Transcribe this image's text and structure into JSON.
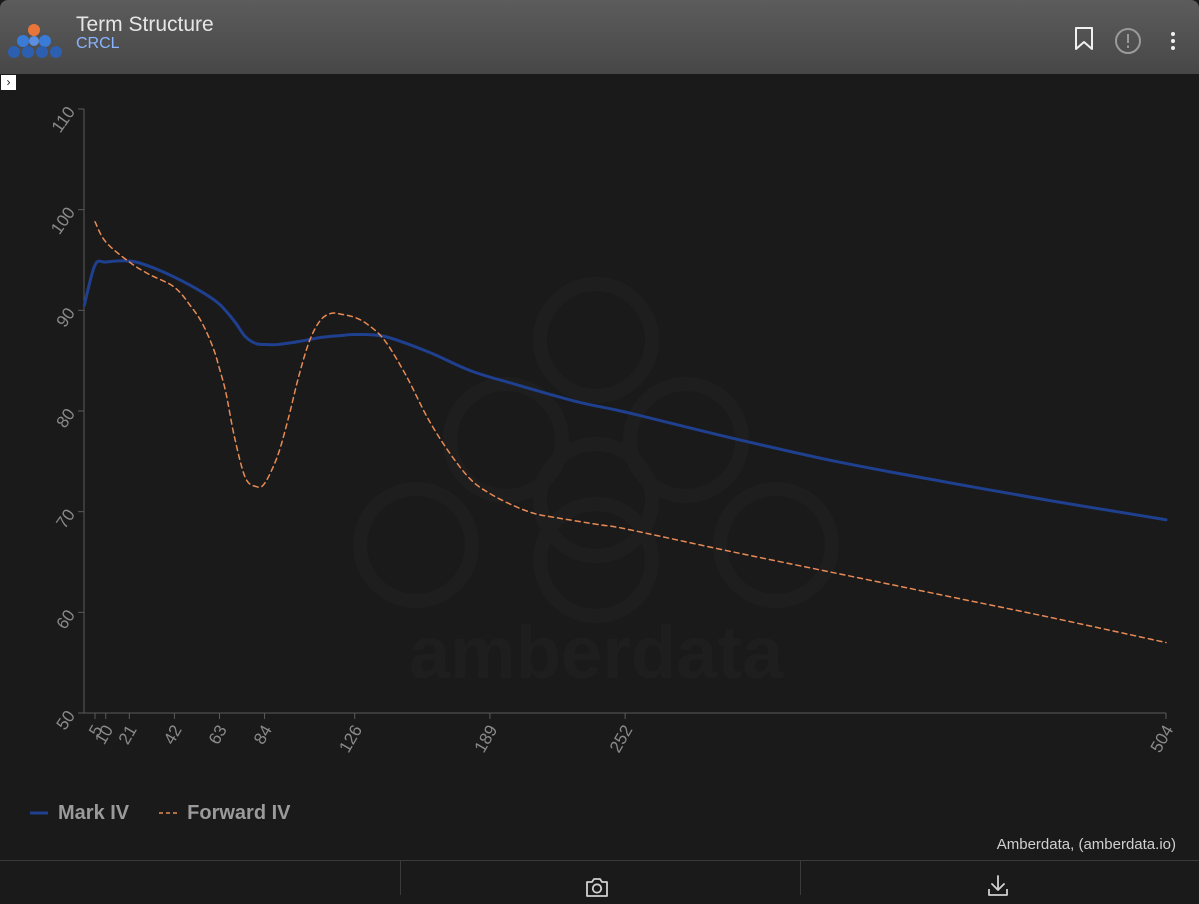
{
  "header": {
    "title": "Term Structure",
    "ticker": "CRCL"
  },
  "footer": {
    "credit": "Amberdata, (amberdata.io)"
  },
  "watermark": "amberdata",
  "colors": {
    "mark_iv": "#1f3f8f",
    "forward_iv": "#e88a55",
    "axis": "#5a5a5a",
    "tick_text": "#8a8a8a"
  },
  "chart_data": {
    "type": "line",
    "title": "Term Structure",
    "xlabel": "",
    "ylabel": "",
    "xticks": [
      5,
      10,
      21,
      42,
      63,
      84,
      126,
      189,
      252,
      504
    ],
    "xlim": [
      0,
      504
    ],
    "ylim": [
      50,
      110
    ],
    "yticks": [
      50,
      60,
      70,
      80,
      90,
      100,
      110
    ],
    "grid": false,
    "legend_position": "bottom-left",
    "series": [
      {
        "name": "Mark IV",
        "style": "solid",
        "x": [
          0,
          5,
          10,
          21,
          30,
          42,
          55,
          63,
          70,
          75,
          80,
          85,
          90,
          100,
          110,
          120,
          126,
          140,
          160,
          180,
          200,
          230,
          252,
          300,
          350,
          400,
          450,
          504
        ],
        "y": [
          90.5,
          94.5,
          94.8,
          94.9,
          94.4,
          93.3,
          91.8,
          90.6,
          88.9,
          87.4,
          86.7,
          86.6,
          86.6,
          86.9,
          87.3,
          87.5,
          87.6,
          87.4,
          85.9,
          84.0,
          82.7,
          80.9,
          79.9,
          77.4,
          75.0,
          73.0,
          71.1,
          69.2
        ]
      },
      {
        "name": "Forward IV",
        "style": "dashed",
        "x": [
          5,
          10,
          21,
          30,
          42,
          50,
          55,
          60,
          63,
          66,
          70,
          75,
          80,
          84,
          90,
          95,
          100,
          105,
          110,
          115,
          120,
          126,
          132,
          140,
          150,
          160,
          170,
          180,
          189,
          200,
          210,
          220,
          240,
          252,
          300,
          350,
          400,
          450,
          504
        ],
        "y": [
          98.8,
          96.8,
          94.8,
          93.6,
          92.3,
          90.3,
          88.7,
          86.3,
          84.2,
          81.8,
          77.4,
          73.4,
          72.5,
          72.8,
          75.5,
          79.2,
          83.5,
          87.0,
          89.0,
          89.7,
          89.6,
          89.3,
          88.6,
          87.0,
          83.5,
          79.3,
          75.9,
          73.2,
          71.8,
          70.6,
          69.8,
          69.4,
          68.7,
          68.3,
          66.1,
          63.9,
          61.7,
          59.5,
          57.0
        ]
      }
    ]
  }
}
